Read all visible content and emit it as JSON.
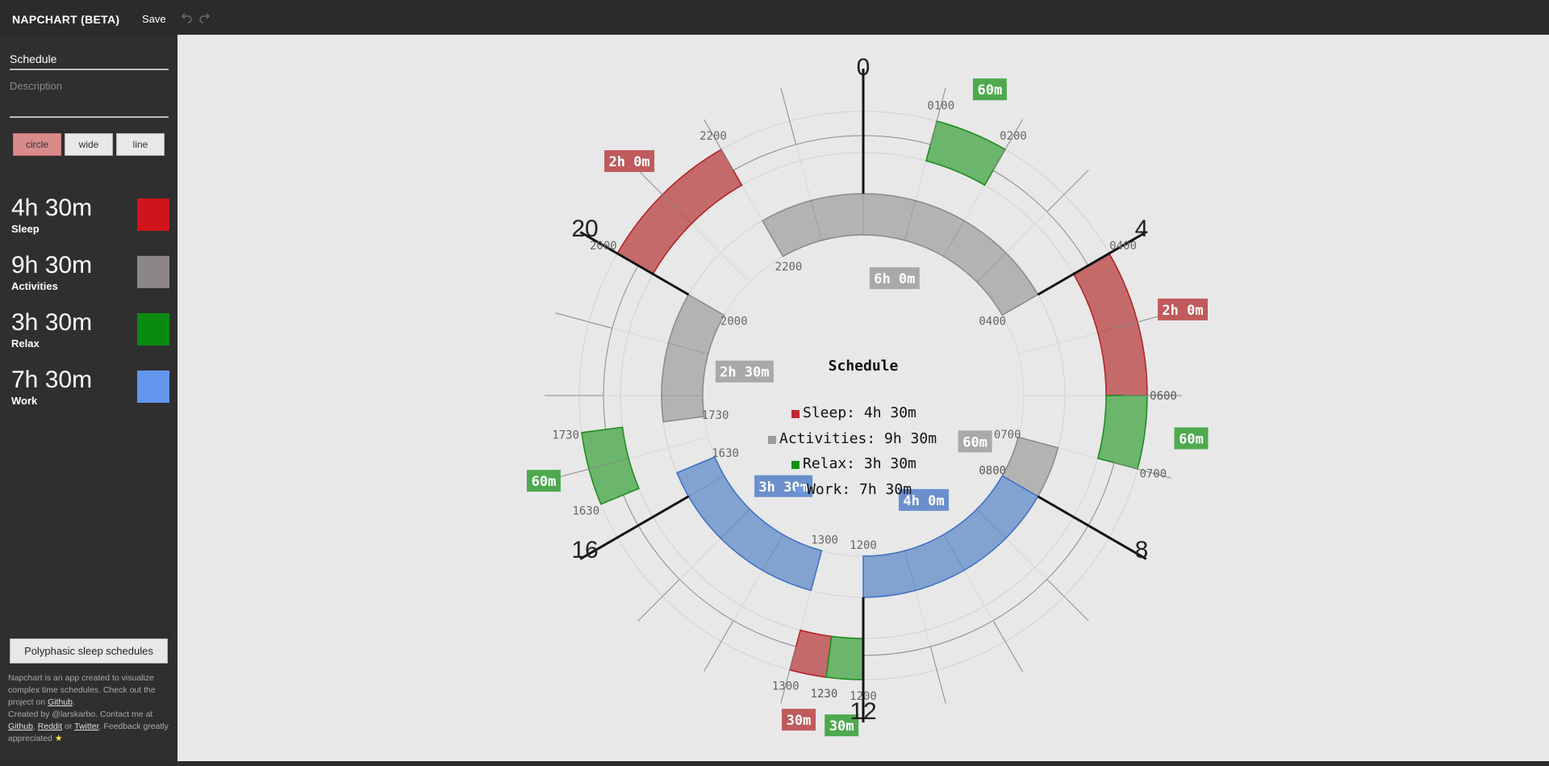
{
  "header": {
    "app_title": "NAPCHART (BETA)",
    "save_label": "Save",
    "undo_icon": "undo-icon",
    "redo_icon": "redo-icon"
  },
  "sidebar": {
    "title_value": "Schedule",
    "description_placeholder": "Description",
    "shapes": [
      {
        "label": "circle",
        "active": true
      },
      {
        "label": "wide",
        "active": false
      },
      {
        "label": "line",
        "active": false
      }
    ],
    "summary": [
      {
        "duration": "4h 30m",
        "name": "Sleep",
        "color": "#d0141c"
      },
      {
        "duration": "9h 30m",
        "name": "Activities",
        "color": "#8b8585"
      },
      {
        "duration": "3h 30m",
        "name": "Relax",
        "color": "#0a8a0f"
      },
      {
        "duration": "7h 30m",
        "name": "Work",
        "color": "#6495ed"
      }
    ],
    "polyphasic_label": "Polyphasic sleep schedules",
    "about": {
      "line1": "Napchart is an app created to visualize complex time schedules. Check out the project on",
      "github_link": "Github",
      "line2": "Created by @larskarbo. Contact me at",
      "reddit_link": "Reddit",
      "or_text": "or",
      "twitter_link": "Twitter",
      "feedback_text": "Feedback greatly appreciated",
      "star_icon": "star-icon"
    }
  },
  "chart": {
    "center_title": "Schedule",
    "hour_labels": [
      "0",
      "4",
      "8",
      "12",
      "16",
      "20"
    ],
    "legend": [
      {
        "text": "Sleep: 4h 30m",
        "color": "#c0262d"
      },
      {
        "text": "Activities: 9h 30m",
        "color": "#9a9a9a"
      },
      {
        "text": "Relax: 3h 30m",
        "color": "#119011"
      },
      {
        "text": "Work: 7h 30m",
        "color": "#6f95dd"
      }
    ],
    "elements": [
      {
        "lane": "outer",
        "category": "sleep",
        "start": "20:00",
        "end": "22:00",
        "duration": "2h 0m",
        "start_label": "2000",
        "end_label": "2200"
      },
      {
        "lane": "outer",
        "category": "relax",
        "start": "01:00",
        "end": "02:00",
        "duration": "60m",
        "start_label": "0100",
        "end_label": "0200"
      },
      {
        "lane": "outer",
        "category": "sleep",
        "start": "04:00",
        "end": "06:00",
        "duration": "2h 0m",
        "start_label": "0400",
        "end_label": "0600"
      },
      {
        "lane": "outer",
        "category": "relax",
        "start": "06:00",
        "end": "07:00",
        "duration": "60m",
        "start_label": "0600",
        "end_label": "0700"
      },
      {
        "lane": "outer",
        "category": "sleep",
        "start": "12:30",
        "end": "13:00",
        "duration": "30m",
        "start_label": "1230",
        "end_label": "1300"
      },
      {
        "lane": "outer",
        "category": "relax",
        "start": "12:00",
        "end": "12:30",
        "duration": "30m",
        "start_label": "1200",
        "end_label": "1230"
      },
      {
        "lane": "outer",
        "category": "relax",
        "start": "16:30",
        "end": "17:30",
        "duration": "60m",
        "start_label": "1630",
        "end_label": "1730"
      },
      {
        "lane": "inner",
        "category": "activities",
        "start": "22:00",
        "end": "04:00",
        "duration": "6h 0m",
        "start_label": "2200",
        "end_label": "0400"
      },
      {
        "lane": "inner",
        "category": "activities",
        "start": "17:30",
        "end": "20:00",
        "duration": "2h 30m",
        "start_label": "1730",
        "end_label": "2000"
      },
      {
        "lane": "inner",
        "category": "activities",
        "start": "07:00",
        "end": "08:00",
        "duration": "60m",
        "start_label": "0700",
        "end_label": "0800"
      },
      {
        "lane": "inner",
        "category": "work",
        "start": "08:00",
        "end": "12:00",
        "duration": "4h 0m",
        "start_label": "0800",
        "end_label": "1200"
      },
      {
        "lane": "inner",
        "category": "work",
        "start": "13:00",
        "end": "16:30",
        "duration": "3h 30m",
        "start_label": "1300",
        "end_label": "1630"
      }
    ]
  }
}
